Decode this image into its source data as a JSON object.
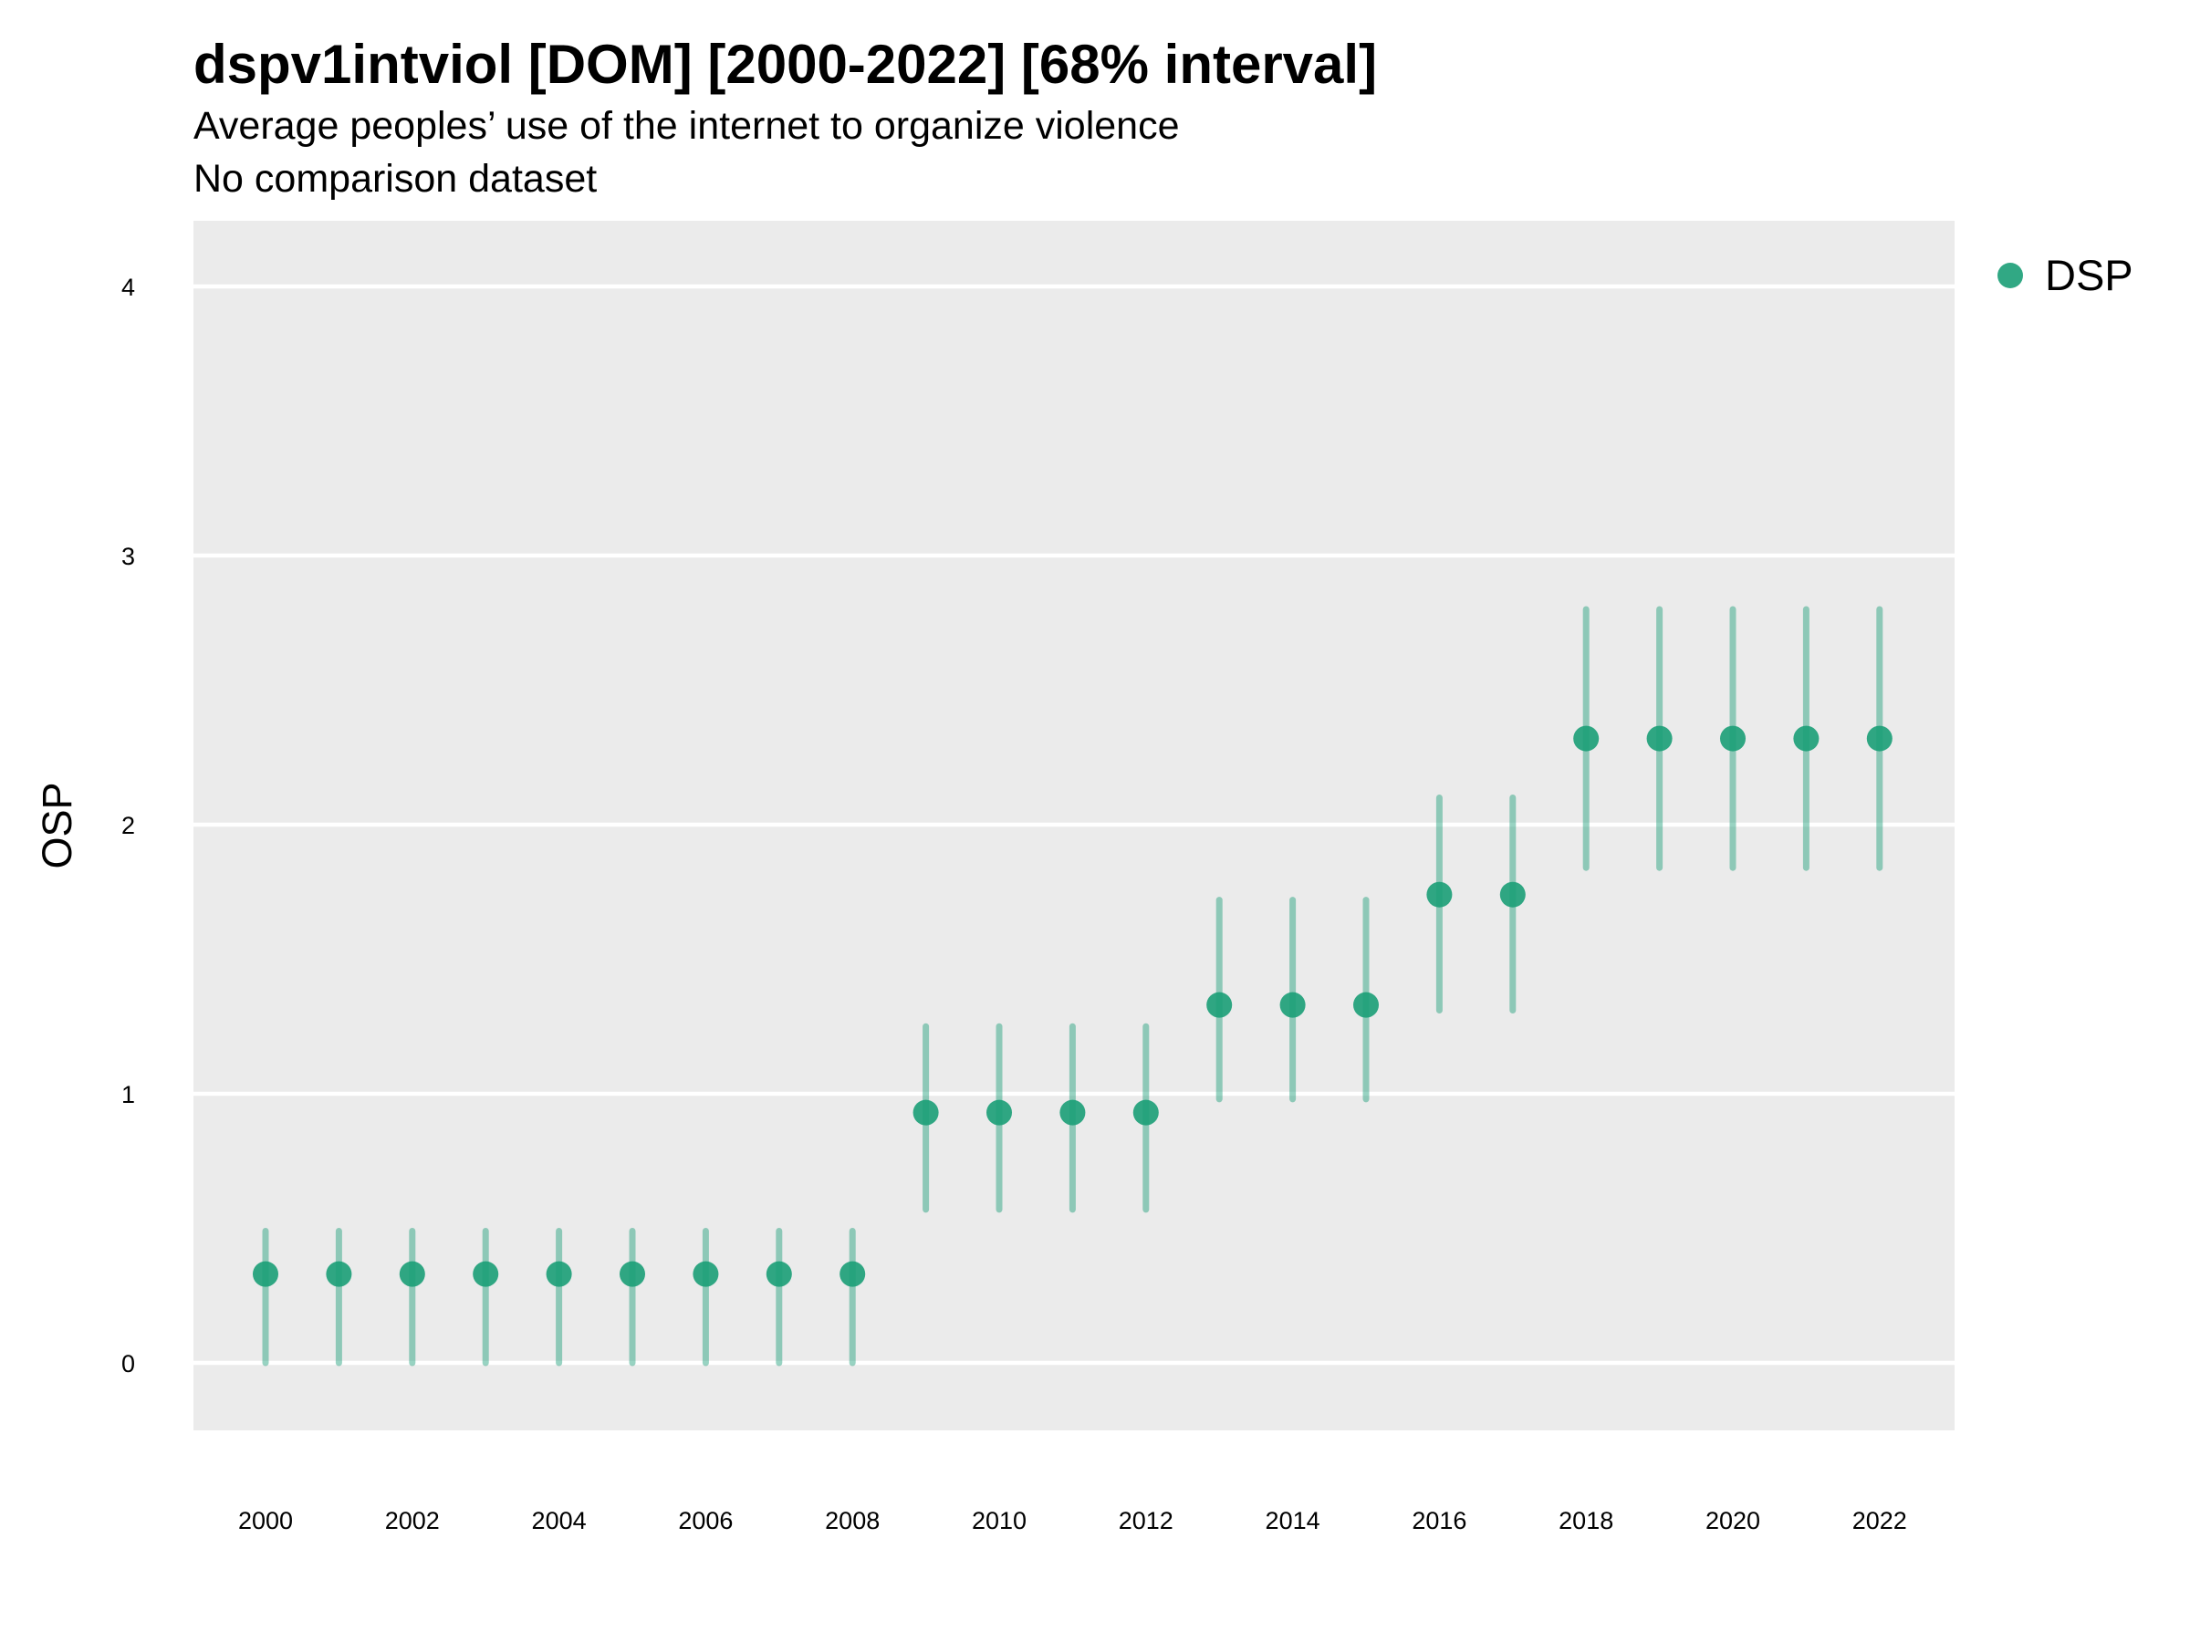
{
  "chart_data": {
    "type": "scatter",
    "title": "dspv1intviol [DOM] [2000-2022] [68% interval]",
    "subtitle": "Average peoples’ use of the internet to organize violence",
    "subtitle2": "No comparison dataset",
    "xlabel": "",
    "ylabel": "OSP",
    "ylim": [
      -0.25,
      4.25
    ],
    "y_ticks": [
      "0",
      "1",
      "2",
      "3",
      "4"
    ],
    "x_ticks": [
      "2000",
      "2002",
      "2004",
      "2006",
      "2008",
      "2010",
      "2012",
      "2014",
      "2016",
      "2018",
      "2020",
      "2022"
    ],
    "grid": true,
    "legend_position": "right",
    "colors": {
      "series": "#1b9e77",
      "panel": "#ebebeb",
      "grid": "#ffffff"
    },
    "series": [
      {
        "name": "DSP",
        "x": [
          2000,
          2001,
          2002,
          2003,
          2004,
          2005,
          2006,
          2007,
          2008,
          2009,
          2010,
          2011,
          2012,
          2013,
          2014,
          2015,
          2016,
          2017,
          2018,
          2019,
          2020,
          2021,
          2022
        ],
        "y": [
          0.33,
          0.33,
          0.33,
          0.33,
          0.33,
          0.33,
          0.33,
          0.33,
          0.33,
          0.93,
          0.93,
          0.93,
          0.93,
          1.33,
          1.33,
          1.33,
          1.74,
          1.74,
          2.32,
          2.32,
          2.32,
          2.32,
          2.32
        ],
        "lower": [
          0.0,
          0.0,
          0.0,
          0.0,
          0.0,
          0.0,
          0.0,
          0.0,
          0.0,
          0.57,
          0.57,
          0.57,
          0.57,
          0.98,
          0.98,
          0.98,
          1.31,
          1.31,
          1.84,
          1.84,
          1.84,
          1.84,
          1.84
        ],
        "upper": [
          0.49,
          0.49,
          0.49,
          0.49,
          0.49,
          0.49,
          0.49,
          0.49,
          0.49,
          1.25,
          1.25,
          1.25,
          1.25,
          1.72,
          1.72,
          1.72,
          2.1,
          2.1,
          2.8,
          2.8,
          2.8,
          2.8,
          2.8
        ]
      }
    ]
  }
}
